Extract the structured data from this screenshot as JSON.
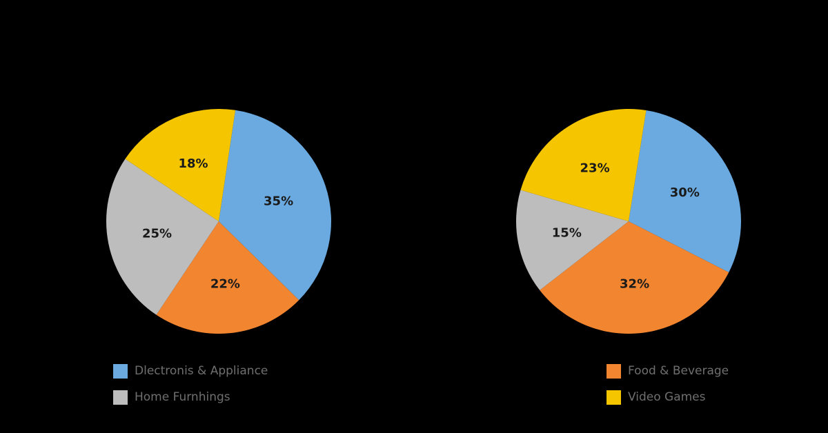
{
  "chart_data": [
    {
      "type": "pie",
      "title": "",
      "slices": [
        {
          "label": "",
          "value": 35,
          "display": "35%",
          "color": "#6aaae0"
        },
        {
          "label": "",
          "value": 22,
          "display": "22%",
          "color": "#f28530"
        },
        {
          "label": "",
          "value": 25,
          "display": "25%",
          "color": "#bdbdbd"
        },
        {
          "label": "",
          "value": 18,
          "display": "18%",
          "color": "#f5c500"
        }
      ],
      "legend": {
        "position": "bottom",
        "items": [
          {
            "label": "Dlectronis & Appliance",
            "color": "#6aaae0"
          },
          {
            "label": "Home Furnhings",
            "color": "#bdbdbd"
          }
        ]
      }
    },
    {
      "type": "pie",
      "title": "",
      "slices": [
        {
          "label": "",
          "value": 30,
          "display": "30%",
          "color": "#6aaae0"
        },
        {
          "label": "",
          "value": 32,
          "display": "32%",
          "color": "#f28530"
        },
        {
          "label": "",
          "value": 15,
          "display": "15%",
          "color": "#bdbdbd"
        },
        {
          "label": "",
          "value": 23,
          "display": "23%",
          "color": "#f5c500"
        }
      ],
      "legend": {
        "position": "bottom",
        "items": [
          {
            "label": "Food & Beverage",
            "color": "#f28530"
          },
          {
            "label": "Video Games",
            "color": "#f5c500"
          }
        ]
      }
    }
  ]
}
